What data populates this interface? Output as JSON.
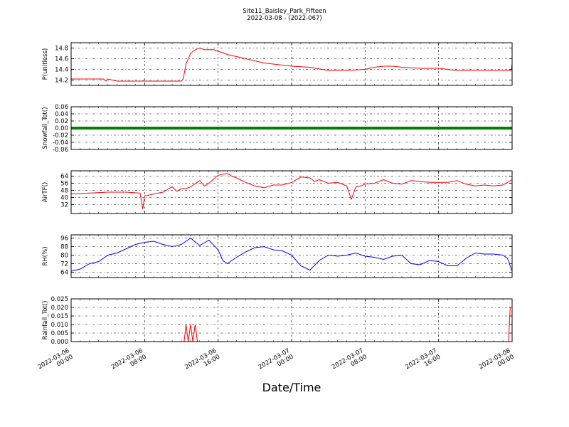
{
  "chart_data": {
    "title": "Site11_Baisley_Park_Fifteen",
    "subtitle": "2022-03-08 - (2022-067)",
    "xlabel": "Date/Time",
    "type": "line",
    "x_ticks": [
      "2022-03-06 00:00",
      "2022-03-06 08:00",
      "2022-03-06 16:00",
      "2022-03-07 00:00",
      "2022-03-07 08:00",
      "2022-03-07 16:00",
      "2022-03-08 00:00"
    ],
    "x_tick_labels": [
      [
        "2022-03-06",
        "00:00"
      ],
      [
        "2022-03-06",
        "08:00"
      ],
      [
        "2022-03-06",
        "16:00"
      ],
      [
        "2022-03-07",
        "00:00"
      ],
      [
        "2022-03-07",
        "08:00"
      ],
      [
        "2022-03-07",
        "16:00"
      ],
      [
        "2022-03-08",
        "00:00"
      ]
    ],
    "xlim": [
      "2022-03-06 00:00",
      "2022-03-08 00:00"
    ],
    "grid": true,
    "panels": [
      {
        "id": "pressure",
        "ylabel": "P(unitless)",
        "color": "#ff0000",
        "ylim": [
          14.1,
          14.9
        ],
        "yticks": [
          "14.2",
          "14.4",
          "14.6",
          "14.8"
        ],
        "x_hours": [
          0,
          3.5,
          3.8,
          4,
          5,
          12,
          12.2,
          12.5,
          13,
          13.5,
          14,
          14.5,
          15,
          15.5,
          16,
          17,
          18,
          19,
          20,
          21,
          22,
          23,
          24,
          26,
          28,
          30,
          32,
          33,
          34,
          35,
          36,
          38,
          40,
          42,
          44,
          46,
          47.9,
          48
        ],
        "values": [
          14.22,
          14.22,
          14.18,
          14.22,
          14.18,
          14.18,
          14.22,
          14.5,
          14.7,
          14.77,
          14.8,
          14.77,
          14.77,
          14.77,
          14.74,
          14.68,
          14.64,
          14.6,
          14.56,
          14.52,
          14.5,
          14.48,
          14.46,
          14.44,
          14.38,
          14.38,
          14.4,
          14.44,
          14.46,
          14.46,
          14.44,
          14.42,
          14.42,
          14.38,
          14.38,
          14.38,
          14.38,
          14.5
        ]
      },
      {
        "id": "snowfall",
        "ylabel": "Snowfall_Tot()",
        "color": "#008000",
        "ylim": [
          -0.06,
          0.06
        ],
        "yticks": [
          "0.06",
          "0.04",
          "0.02",
          "0.00",
          "-0.02",
          "-0.04",
          "-0.06"
        ],
        "x_hours": [
          0,
          48
        ],
        "values": [
          0,
          0
        ]
      },
      {
        "id": "airtemp",
        "ylabel": "AirTF()",
        "color": "#ff0000",
        "ylim": [
          22,
          70
        ],
        "yticks": [
          "64",
          "56",
          "48",
          "40",
          "32"
        ],
        "x_hours": [
          0,
          2,
          4,
          6,
          7.5,
          7.8,
          8,
          8.2,
          9,
          10,
          11,
          11.5,
          12,
          12.5,
          13,
          14,
          14.5,
          15,
          16,
          17,
          17.5,
          18,
          19,
          20,
          21,
          22,
          23,
          24,
          25,
          26,
          26.5,
          27,
          28,
          29,
          30,
          30.5,
          31,
          31.5,
          32,
          33,
          34,
          35,
          36,
          37,
          38,
          39,
          40,
          41,
          42,
          43,
          44,
          45,
          46,
          47,
          48
        ],
        "values": [
          44,
          45,
          46,
          46,
          45,
          27,
          42,
          42,
          44,
          46,
          52,
          47,
          50,
          50,
          52,
          59,
          53,
          56,
          65,
          67,
          64,
          62,
          57,
          53,
          51,
          54,
          54,
          57,
          63,
          62,
          58,
          60,
          56,
          57,
          53,
          38,
          52,
          53,
          55,
          56,
          60,
          56,
          55,
          59,
          58,
          57,
          57,
          57,
          59,
          55,
          53,
          54,
          53,
          54,
          60
        ]
      },
      {
        "id": "rh",
        "ylabel": "RH(%)",
        "color": "#0000ff",
        "ylim": [
          59,
          99
        ],
        "yticks": [
          "96",
          "88",
          "80",
          "72",
          "64"
        ],
        "x_hours": [
          0,
          1,
          2,
          3,
          4,
          5,
          6,
          7,
          8,
          9,
          10,
          11,
          12,
          13,
          14,
          15,
          16,
          16.5,
          17,
          18,
          19,
          20,
          21,
          22,
          23,
          24,
          25,
          26,
          27,
          28,
          29,
          30,
          31,
          32,
          33,
          34,
          35,
          36,
          37,
          38,
          39,
          40,
          41,
          42,
          43,
          44,
          45,
          46,
          47,
          47.5,
          48
        ],
        "values": [
          65,
          67,
          72,
          74,
          80,
          82,
          86,
          90,
          92,
          93,
          90,
          88,
          90,
          96,
          89,
          94,
          85,
          75,
          72,
          78,
          83,
          87,
          88,
          85,
          84,
          80,
          70,
          66,
          75,
          80,
          79,
          80,
          82,
          79,
          78,
          76,
          79,
          80,
          72,
          71,
          75,
          74,
          70,
          70,
          77,
          82,
          81,
          81,
          80,
          77,
          65
        ]
      },
      {
        "id": "rainfall",
        "ylabel": "Rainfall_Tot()",
        "color": "#ff0000",
        "ylim": [
          0,
          0.025
        ],
        "yticks": [
          "0.025",
          "0.020",
          "0.015",
          "0.010",
          "0.005",
          "0.000"
        ],
        "x_hours": [
          0,
          12.3,
          12.5,
          12.75,
          13.0,
          13.25,
          13.5,
          13.75,
          14.0,
          47.6,
          47.8,
          47.9,
          48
        ],
        "values": [
          0,
          0,
          0.01,
          0,
          0.01,
          0,
          0.01,
          0,
          0,
          0,
          0.02,
          0.02,
          0.02
        ]
      }
    ]
  }
}
